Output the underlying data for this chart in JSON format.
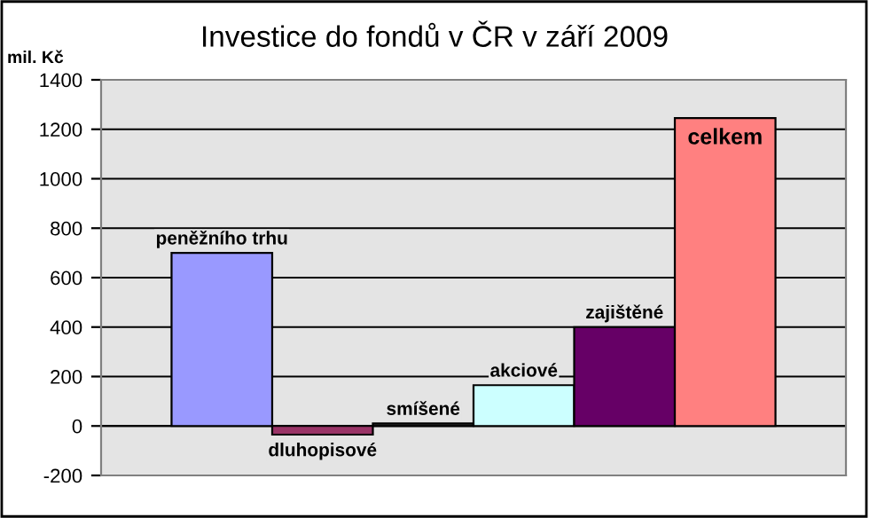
{
  "chart_data": {
    "type": "bar",
    "title": "Investice do fondů v ČR v září 2009",
    "ylabel": "mil. Kč",
    "categories": [
      "peněžního trhu",
      "dluhopisové",
      "smíšené",
      "akciové",
      "zajištěné",
      "celkem"
    ],
    "values": [
      700,
      -35,
      10,
      165,
      400,
      1245
    ],
    "colors": [
      "#9999ff",
      "#993366",
      "#333333",
      "#ccffff",
      "#660066",
      "#ff8080"
    ],
    "ylim": [
      -200,
      1400
    ],
    "yticks": [
      -200,
      0,
      200,
      400,
      600,
      800,
      1000,
      1200,
      1400
    ],
    "grid": "y",
    "legend": false
  }
}
